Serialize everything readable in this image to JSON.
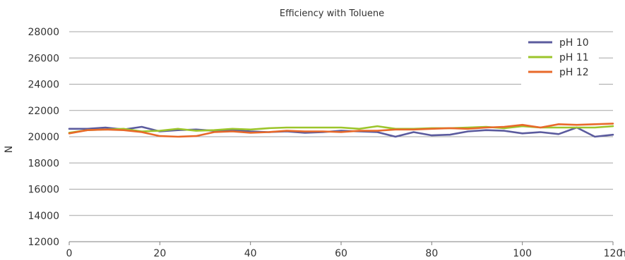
{
  "chart_data": {
    "type": "line",
    "title": "Efficiency with Toluene",
    "xlabel": "h",
    "ylabel": "N",
    "xlim": [
      0,
      120
    ],
    "ylim": [
      12000,
      28000
    ],
    "x_ticks": [
      0,
      20,
      40,
      60,
      80,
      100,
      120
    ],
    "y_ticks": [
      12000,
      14000,
      16000,
      18000,
      20000,
      22000,
      24000,
      26000,
      28000
    ],
    "grid": "horizontal",
    "legend_position": "top-right",
    "x": [
      0,
      4,
      8,
      12,
      16,
      20,
      24,
      28,
      32,
      36,
      40,
      44,
      48,
      52,
      56,
      60,
      64,
      68,
      72,
      76,
      80,
      84,
      88,
      92,
      96,
      100,
      104,
      108,
      112,
      116,
      120
    ],
    "series": [
      {
        "name": "pH 10",
        "color": "#5b5b9e",
        "values": [
          20600,
          20600,
          20700,
          20550,
          20750,
          20400,
          20500,
          20550,
          20450,
          20500,
          20400,
          20350,
          20400,
          20300,
          20350,
          20450,
          20400,
          20350,
          20000,
          20350,
          20100,
          20150,
          20400,
          20500,
          20450,
          20250,
          20350,
          20200,
          20700,
          20000,
          20150
        ]
      },
      {
        "name": "pH 11",
        "color": "#9cc52b",
        "values": [
          20300,
          20500,
          20550,
          20600,
          20400,
          20450,
          20600,
          20450,
          20500,
          20600,
          20550,
          20650,
          20700,
          20700,
          20700,
          20700,
          20600,
          20800,
          20600,
          20600,
          20650,
          20650,
          20700,
          20750,
          20650,
          20800,
          20700,
          20700,
          20700,
          20700,
          20800
        ]
      },
      {
        "name": "pH 12",
        "color": "#e8692a",
        "values": [
          20250,
          20500,
          20550,
          20500,
          20350,
          20050,
          20000,
          20050,
          20350,
          20400,
          20300,
          20350,
          20450,
          20400,
          20400,
          20350,
          20450,
          20450,
          20550,
          20550,
          20600,
          20650,
          20600,
          20700,
          20750,
          20900,
          20700,
          20950,
          20900,
          20950,
          21000
        ]
      }
    ]
  }
}
